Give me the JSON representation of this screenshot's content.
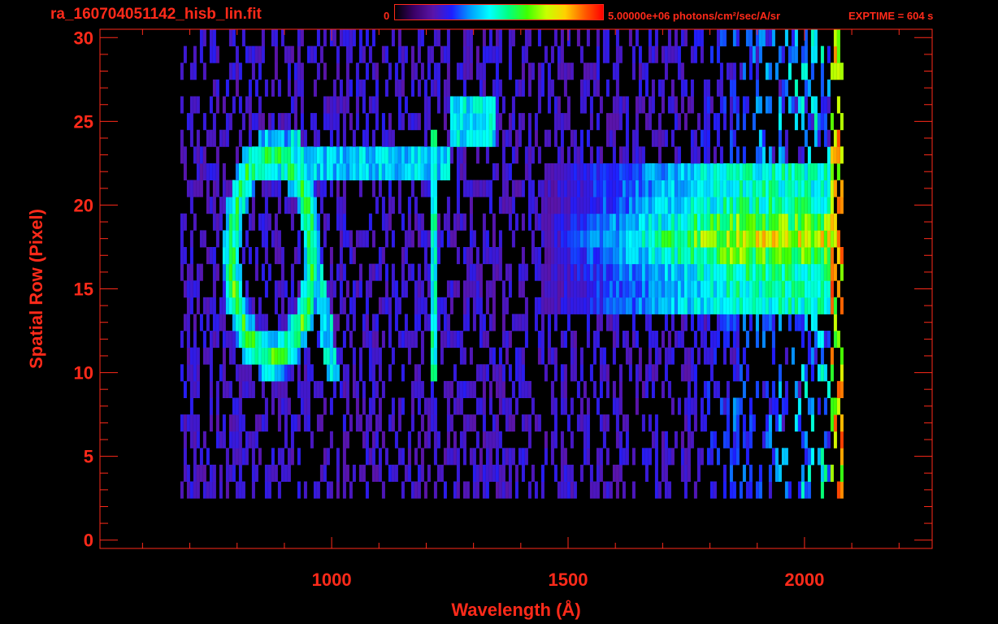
{
  "header": {
    "file_name": "ra_160704051142_hisb_lin.fit",
    "colorbar_min": "0",
    "colorbar_max": "5.00000e+06 photons/cm²/sec/A/sr",
    "exptime": "EXPTIME = 604 s"
  },
  "colors": {
    "axis": "#ff2a1a",
    "background": "#000000",
    "colormap": [
      "#000000",
      "#3a0066",
      "#5a14a8",
      "#1e1eff",
      "#00a0ff",
      "#00ffff",
      "#00ff80",
      "#40ff00",
      "#c8ff00",
      "#ffd000",
      "#ff6000",
      "#ff0000"
    ]
  },
  "chart_data": {
    "type": "heatmap",
    "title": "ra_160704051142_hisb_lin.fit",
    "xlabel": "Wavelength (Å)",
    "ylabel": "Spatial Row (Pixel)",
    "xlim": [
      510,
      2270
    ],
    "ylim": [
      -0.5,
      30.5
    ],
    "x_ticks": [
      1000,
      1500,
      2000
    ],
    "x_tick_labels": [
      "1000",
      "1500",
      "2000"
    ],
    "y_ticks": [
      0,
      5,
      10,
      15,
      20,
      25,
      30
    ],
    "y_tick_labels": [
      "0",
      "5",
      "10",
      "15",
      "20",
      "25",
      "30"
    ],
    "colorbar_range": [
      0,
      5000000
    ],
    "colorbar_unit": "photons/cm²/sec/A/sr",
    "exposure_time_s": 604,
    "signal_extent": {
      "wavelength": [
        680,
        2070
      ],
      "rows": [
        3,
        30
      ]
    },
    "features": [
      {
        "name": "bright band",
        "wavelength": [
          1650,
          2060
        ],
        "rows": [
          14,
          22
        ],
        "level": 0.72
      },
      {
        "name": "ring",
        "center_wavelength": 870,
        "center_row": 17,
        "radius_wavelength": 85,
        "radius_row": 6,
        "level": 0.62
      },
      {
        "name": "diagonal streak",
        "from": [
          1000,
          10
        ],
        "to": [
          920,
          24
        ],
        "level": 0.45
      },
      {
        "name": "vertical line",
        "wavelength": 1215,
        "rows": [
          10,
          24
        ],
        "level": 0.5
      },
      {
        "name": "upper patch",
        "wavelength": [
          1250,
          1340
        ],
        "rows": [
          24,
          26
        ],
        "level": 0.45
      },
      {
        "name": "edge column",
        "wavelength": 2060,
        "rows": [
          1,
          30
        ],
        "level": 0.95
      }
    ]
  }
}
